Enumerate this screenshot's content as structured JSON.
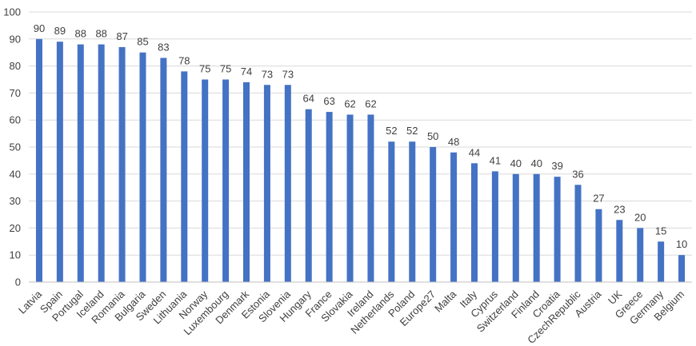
{
  "chart_data": {
    "type": "bar",
    "title": "",
    "xlabel": "",
    "ylabel": "",
    "ylim": [
      0,
      100
    ],
    "yticks": [
      0,
      10,
      20,
      30,
      40,
      50,
      60,
      70,
      80,
      90,
      100
    ],
    "grid": true,
    "legend": "none",
    "bar_color": "#4472c4",
    "categories": [
      "Latvia",
      "Spain",
      "Portugal",
      "Iceland",
      "Romania",
      "Bulgaria",
      "Sweden",
      "Lithuania",
      "Norway",
      "Luxembourg",
      "Denmark",
      "Estonia",
      "Slovenia",
      "Hungary",
      "France",
      "Slovakia",
      "Ireland",
      "Netherlands",
      "Poland",
      "Europe27",
      "Malta",
      "Italy",
      "Cyprus",
      "Switzerland",
      "Finland",
      "Croatia",
      "CzechRepublic",
      "Austria",
      "UK",
      "Greece",
      "Germany",
      "Belgium"
    ],
    "values": [
      90,
      89,
      88,
      88,
      87,
      85,
      83,
      78,
      75,
      75,
      74,
      73,
      73,
      64,
      63,
      62,
      62,
      52,
      52,
      50,
      48,
      44,
      41,
      40,
      40,
      39,
      36,
      27,
      23,
      20,
      15,
      10
    ]
  }
}
